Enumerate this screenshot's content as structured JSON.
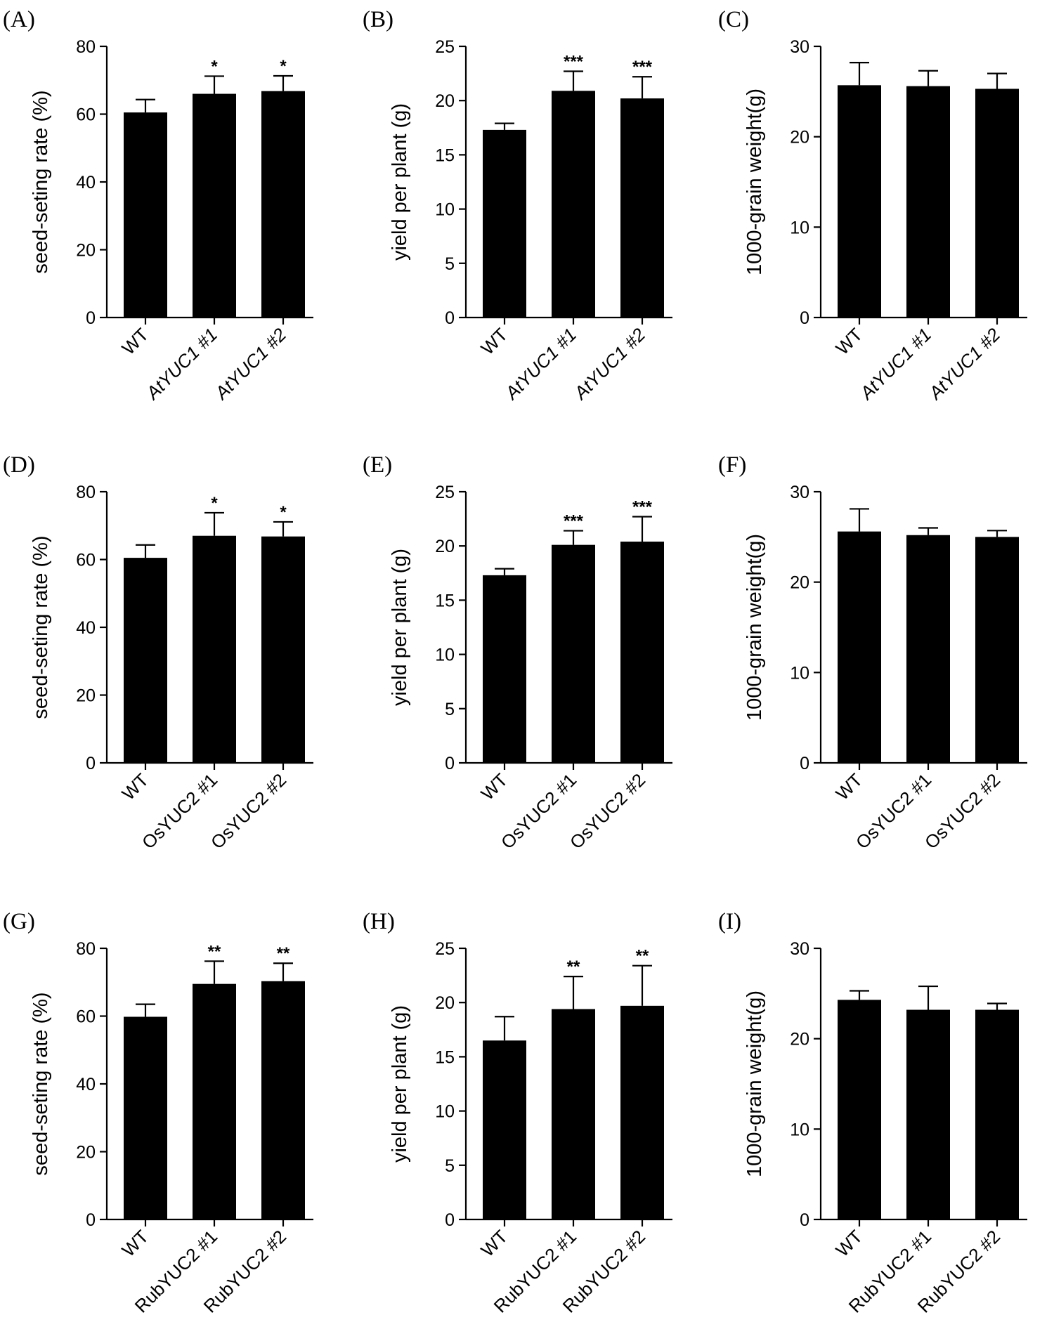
{
  "colors": {
    "bar": "#000000",
    "axis": "#000000",
    "background": "#ffffff"
  },
  "chart_data": [
    {
      "panel": "(A)",
      "type": "bar",
      "ylabel": "seed-seting rate (%)",
      "ylim": [
        0,
        80
      ],
      "yticks": [
        0,
        20,
        40,
        60,
        80
      ],
      "categories": [
        "WT",
        "AtYUC1 #1",
        "AtYUC1 #2"
      ],
      "italic_categories": true,
      "values": [
        60.5,
        66,
        66.8
      ],
      "errors": [
        3.8,
        5.2,
        4.5
      ],
      "significance": [
        "",
        "*",
        "*"
      ]
    },
    {
      "panel": "(B)",
      "type": "bar",
      "ylabel": "yield per plant (g)",
      "ylim": [
        0,
        25
      ],
      "yticks": [
        0,
        5,
        10,
        15,
        20,
        25
      ],
      "categories": [
        "WT",
        "AtYUC1 #1",
        "AtYUC1 #2"
      ],
      "italic_categories": true,
      "values": [
        17.3,
        20.9,
        20.2
      ],
      "errors": [
        0.6,
        1.8,
        2.0
      ],
      "significance": [
        "",
        "***",
        "***"
      ]
    },
    {
      "panel": "(C)",
      "type": "bar",
      "ylabel": "1000-grain weight(g)",
      "ylim": [
        0,
        30
      ],
      "yticks": [
        0,
        10,
        20,
        30
      ],
      "categories": [
        "WT",
        "AtYUC1 #1",
        "AtYUC1 #2"
      ],
      "italic_categories": true,
      "values": [
        25.7,
        25.6,
        25.3
      ],
      "errors": [
        2.5,
        1.7,
        1.7
      ],
      "significance": [
        "",
        "",
        ""
      ]
    },
    {
      "panel": "(D)",
      "type": "bar",
      "ylabel": "seed-seting rate (%)",
      "ylim": [
        0,
        80
      ],
      "yticks": [
        0,
        20,
        40,
        60,
        80
      ],
      "categories": [
        "WT",
        "OsYUC2 #1",
        "OsYUC2 #2"
      ],
      "italic_categories": false,
      "values": [
        60.5,
        67,
        66.8
      ],
      "errors": [
        3.8,
        6.8,
        4.3
      ],
      "significance": [
        "",
        "*",
        "*"
      ]
    },
    {
      "panel": "(E)",
      "type": "bar",
      "ylabel": "yield per plant (g)",
      "ylim": [
        0,
        25
      ],
      "yticks": [
        0,
        5,
        10,
        15,
        20,
        25
      ],
      "categories": [
        "WT",
        "OsYUC2 #1",
        "OsYUC2 #2"
      ],
      "italic_categories": false,
      "values": [
        17.3,
        20.1,
        20.4
      ],
      "errors": [
        0.6,
        1.3,
        2.3
      ],
      "significance": [
        "",
        "***",
        "***"
      ]
    },
    {
      "panel": "(F)",
      "type": "bar",
      "ylabel": "1000-grain weight(g)",
      "ylim": [
        0,
        30
      ],
      "yticks": [
        0,
        10,
        20,
        30
      ],
      "categories": [
        "WT",
        "OsYUC2 #1",
        "OsYUC2 #2"
      ],
      "italic_categories": false,
      "values": [
        25.6,
        25.2,
        25.0
      ],
      "errors": [
        2.5,
        0.8,
        0.7
      ],
      "significance": [
        "",
        "",
        ""
      ]
    },
    {
      "panel": "(G)",
      "type": "bar",
      "ylabel": "seed-seting rate (%)",
      "ylim": [
        0,
        80
      ],
      "yticks": [
        0,
        20,
        40,
        60,
        80
      ],
      "categories": [
        "WT",
        "RubYUC2 #1",
        "RubYUC2 #2"
      ],
      "italic_categories": false,
      "values": [
        59.8,
        69.5,
        70.3
      ],
      "errors": [
        3.7,
        6.7,
        5.3
      ],
      "significance": [
        "",
        "**",
        "**"
      ]
    },
    {
      "panel": "(H)",
      "type": "bar",
      "ylabel": "yield per plant (g)",
      "ylim": [
        0,
        25
      ],
      "yticks": [
        0,
        5,
        10,
        15,
        20,
        25
      ],
      "categories": [
        "WT",
        "RubYUC2 #1",
        "RubYUC2 #2"
      ],
      "italic_categories": false,
      "values": [
        16.5,
        19.4,
        19.7
      ],
      "errors": [
        2.2,
        3.0,
        3.7
      ],
      "significance": [
        "",
        "**",
        "**"
      ]
    },
    {
      "panel": "(I)",
      "type": "bar",
      "ylabel": "1000-grain weight(g)",
      "ylim": [
        0,
        30
      ],
      "yticks": [
        0,
        10,
        20,
        30
      ],
      "categories": [
        "WT",
        "RubYUC2 #1",
        "RubYUC2 #2"
      ],
      "italic_categories": false,
      "values": [
        24.3,
        23.2,
        23.2
      ],
      "errors": [
        1.0,
        2.6,
        0.7
      ],
      "significance": [
        "",
        "",
        ""
      ]
    }
  ]
}
